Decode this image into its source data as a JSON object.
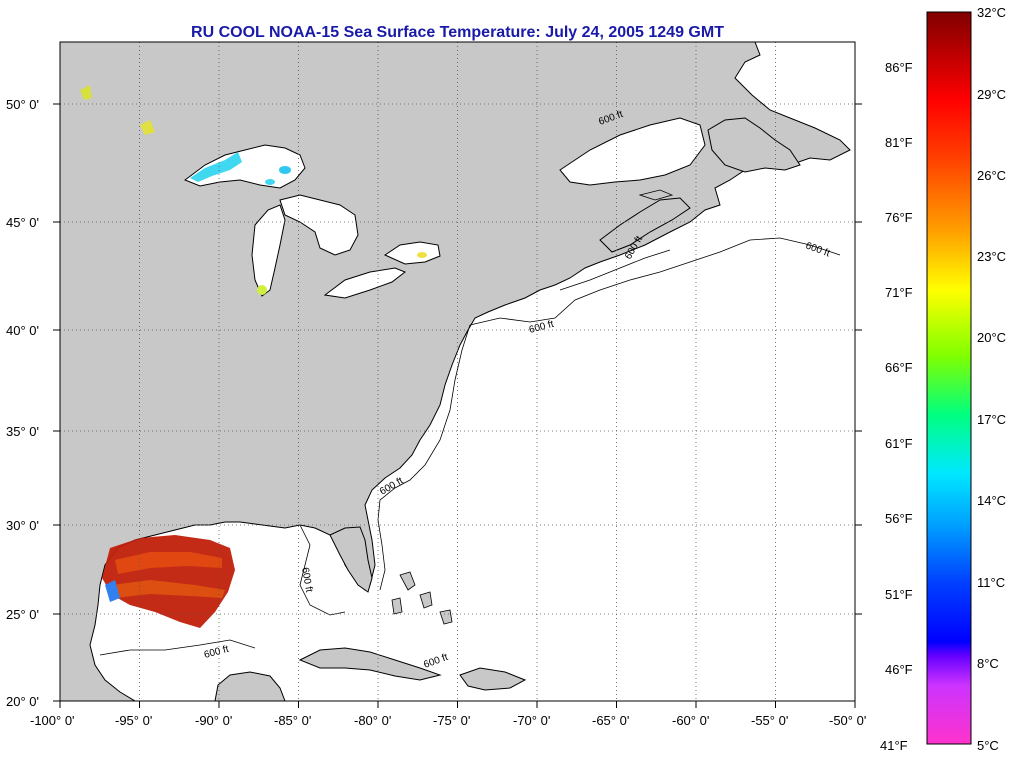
{
  "title": "RU COOL  NOAA-15  Sea Surface Temperature:  July 24, 2005 1249 GMT",
  "map": {
    "lon_range": [
      -100,
      -50
    ],
    "lat_range": [
      20,
      52.5
    ],
    "lon_ticks": [
      "-100° 0'",
      "-95° 0'",
      "-90° 0'",
      "-85° 0'",
      "-80° 0'",
      "-75° 0'",
      "-70° 0'",
      "-65° 0'",
      "-60° 0'",
      "-55° 0'",
      "-50° 0'"
    ],
    "lat_ticks": [
      "50° 0'",
      "45° 0'",
      "40° 0'",
      "35° 0'",
      "30° 0'",
      "25° 0'",
      "20° 0'"
    ],
    "contour_label": "600 ft",
    "land_color": "#c8c8c8",
    "water_color": "#ffffff",
    "grid": true
  },
  "colorbar": {
    "celsius_labels": [
      "32°C",
      "29°C",
      "26°C",
      "23°C",
      "20°C",
      "17°C",
      "14°C",
      "11°C",
      "8°C",
      "5°C"
    ],
    "fahrenheit_labels": [
      "86°F",
      "81°F",
      "76°F",
      "71°F",
      "66°F",
      "61°F",
      "56°F",
      "51°F",
      "46°F",
      "41°F"
    ],
    "colors": [
      "#ff00ff",
      "#b000d0",
      "#4000ff",
      "#0000ff",
      "#0080ff",
      "#00e0ff",
      "#00ff80",
      "#a0ff00",
      "#ffff00",
      "#ffa000",
      "#ff4000",
      "#ff0000",
      "#a00000",
      "#7a0000"
    ]
  }
}
